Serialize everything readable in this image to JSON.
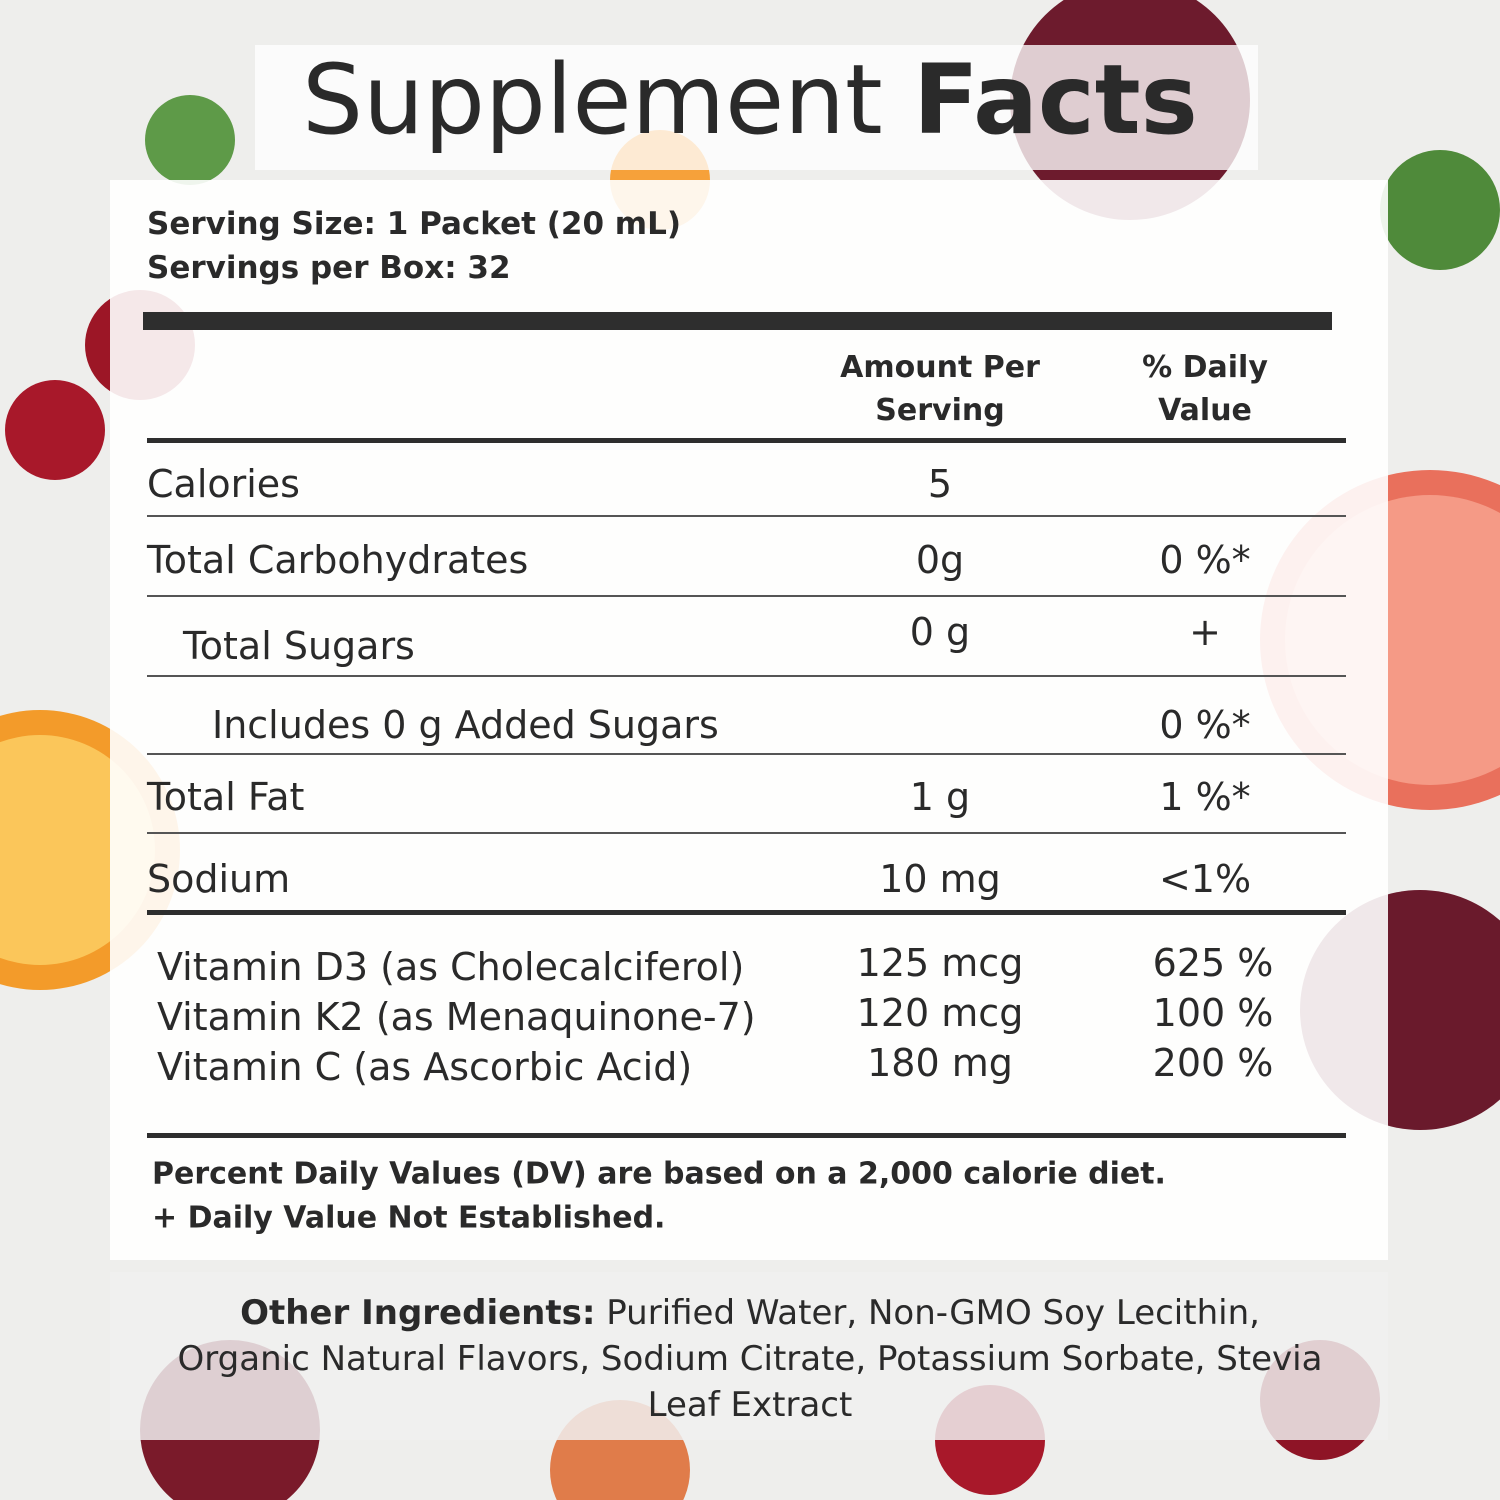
{
  "title": {
    "regular": "Supplement",
    "bold": "Facts"
  },
  "serving": {
    "size": "Serving Size: 1 Packet (20 mL)",
    "per_box": "Servings per Box: 32"
  },
  "header": {
    "amount": "Amount Per Serving",
    "daily_value": "% Daily Value"
  },
  "rows": [
    {
      "label": "Calories",
      "amount": "5",
      "daily_value": null,
      "level": 0
    },
    {
      "label": "Total Carbohydrates",
      "amount": "0g",
      "daily_value": "0 %*",
      "level": 0
    },
    {
      "label": "Total Sugars",
      "amount": "0 g",
      "daily_value": "+",
      "level": 1
    },
    {
      "label": "Includes 0 g Added Sugars",
      "amount": null,
      "daily_value": "0 %*",
      "level": 2
    },
    {
      "label": "Total Fat",
      "amount": "1 g",
      "daily_value": "1 %*",
      "level": 0
    },
    {
      "label": "Sodium",
      "amount": "10 mg",
      "daily_value": "<1%",
      "level": 0
    }
  ],
  "vitamins": [
    {
      "label": "Vitamin D3 (as Cholecalciferol)",
      "amount": "125 mcg",
      "daily_value": "625 %"
    },
    {
      "label": "Vitamin K2 (as Menaquinone-7)",
      "amount": "120 mcg",
      "daily_value": "100 %"
    },
    {
      "label": "Vitamin C (as Ascorbic Acid)",
      "amount": "180 mg",
      "daily_value": "200 %"
    }
  ],
  "footnotes": [
    "Percent Daily Values (DV) are based on a 2,000 calorie diet.",
    "+ Daily Value Not Established."
  ],
  "other_ingredients": {
    "label": "Other Ingredients:",
    "text": "Purified Water, Non-GMO Soy Lecithin, Organic Natural Flavors, Sodium Citrate, Potassium Sorbate, Stevia Leaf Extract"
  }
}
